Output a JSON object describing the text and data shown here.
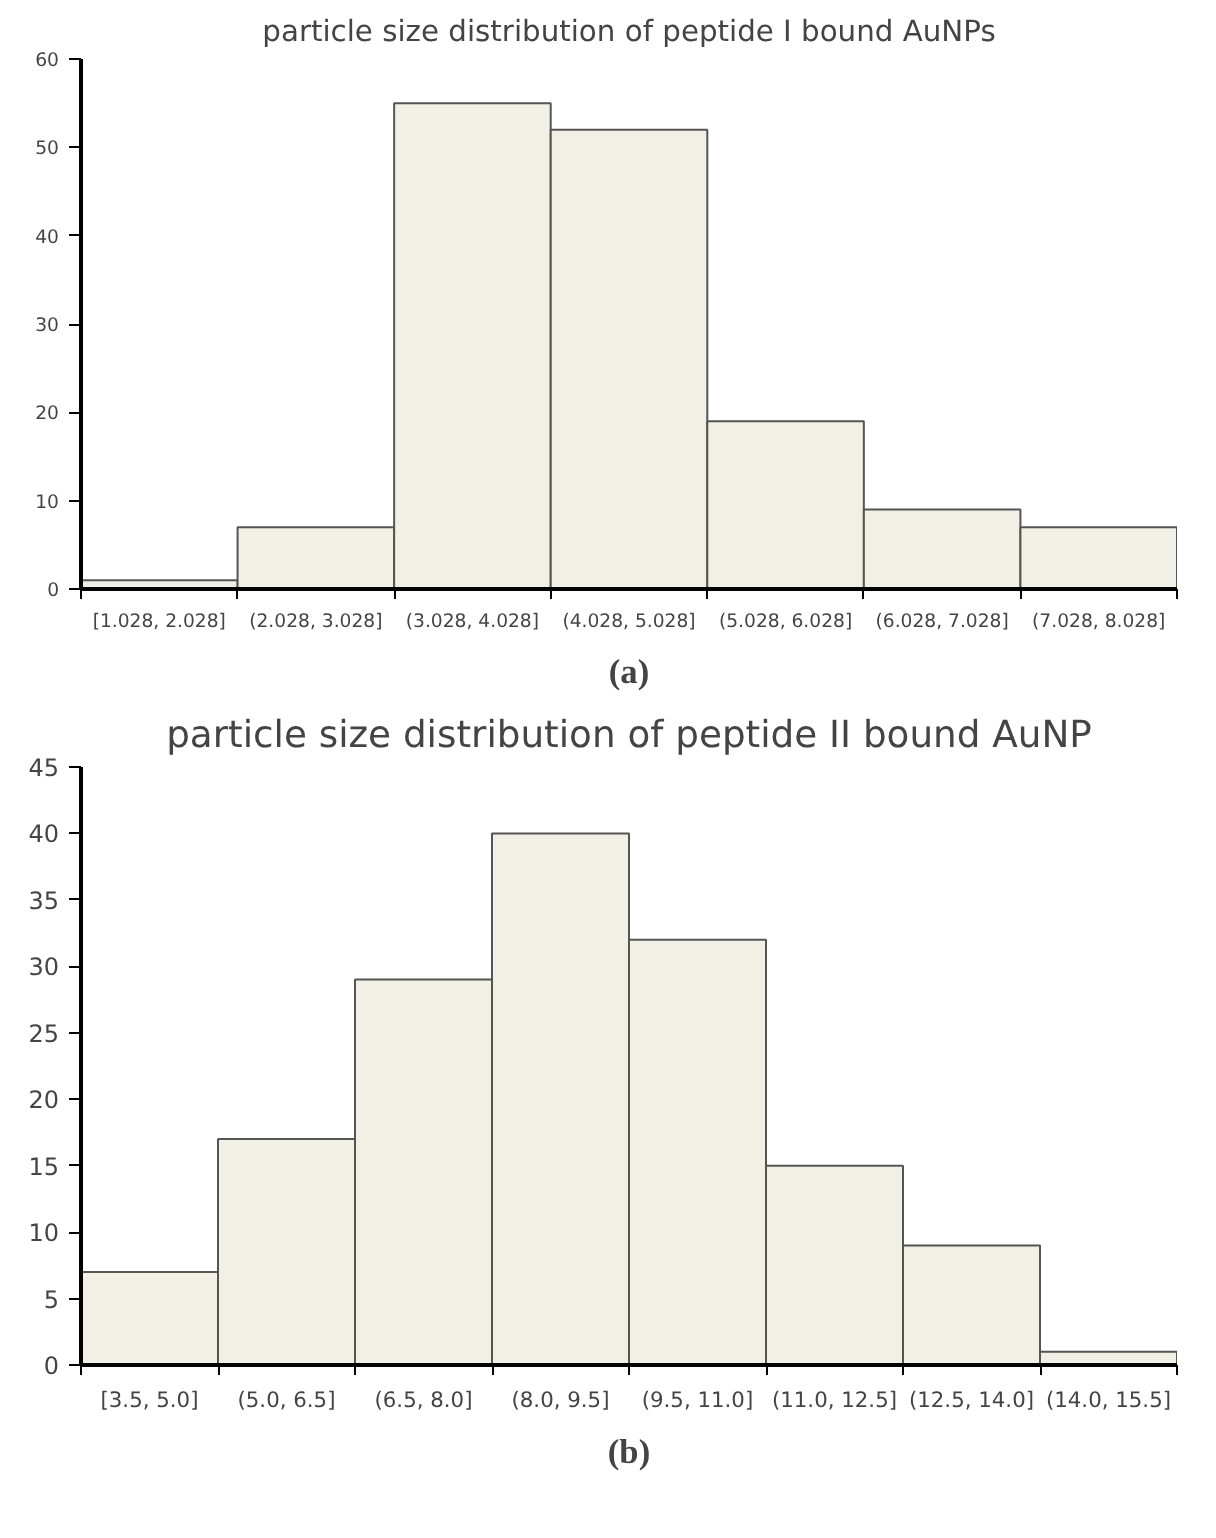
{
  "chart_data": [
    {
      "type": "bar",
      "title": "particle size distribution of peptide I bound AuNPs",
      "categories": [
        "[1.028, 2.028]",
        "(2.028, 3.028]",
        "(3.028, 4.028]",
        "(4.028, 5.028]",
        "(5.028, 6.028]",
        "(6.028, 7.028]",
        "(7.028, 8.028]"
      ],
      "values": [
        1,
        7,
        55,
        52,
        19,
        9,
        7
      ],
      "color": "#f2f0e4",
      "ylim": [
        0,
        60
      ],
      "yticks": [
        0,
        10,
        20,
        30,
        40,
        50,
        60
      ],
      "grid": false,
      "annotations": [
        "(a)"
      ]
    },
    {
      "type": "bar",
      "title": "particle size distribution of peptide II bound AuNP",
      "categories": [
        "[3.5, 5.0]",
        "(5.0, 6.5]",
        "(6.5, 8.0]",
        "(8.0, 9.5]",
        "(9.5, 11.0]",
        "(11.0, 12.5]",
        "(12.5, 14.0]",
        "(14.0, 15.5]"
      ],
      "values": [
        7,
        17,
        29,
        40,
        32,
        15,
        9,
        1
      ],
      "color": "#f2f0e4",
      "ylim": [
        0,
        45
      ],
      "yticks": [
        0,
        5,
        10,
        15,
        20,
        25,
        30,
        35,
        40,
        45
      ],
      "grid": false,
      "annotations": [
        "(b)"
      ]
    }
  ]
}
